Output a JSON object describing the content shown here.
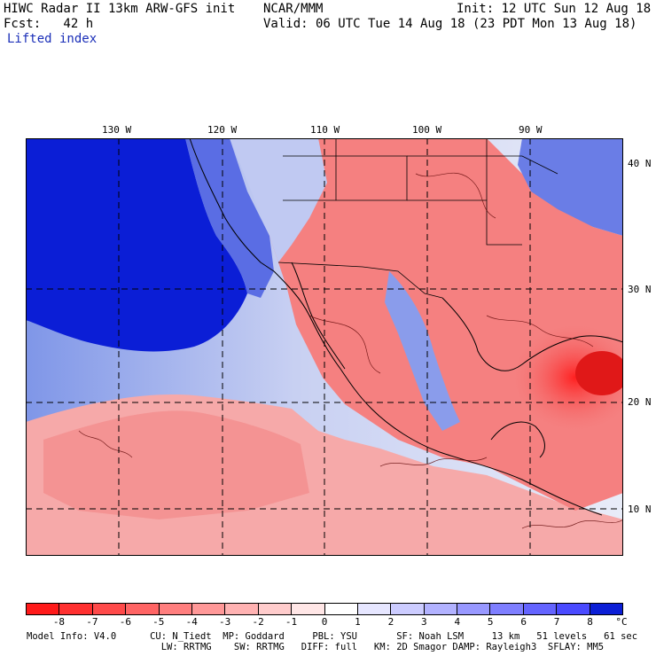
{
  "header": {
    "title_left": "HIWC Radar II 13km ARW-GFS init",
    "org": "NCAR/MMM",
    "init": "Init: 12 UTC Sun 12 Aug 18",
    "fcst": "Fcst:   42 h",
    "valid": "Valid: 06 UTC Tue 14 Aug 18 (23 PDT Mon 13 Aug 18)",
    "field": "Lifted index"
  },
  "map": {
    "lon_labels": [
      "130 W",
      "120 W",
      "110 W",
      "100 W",
      "90 W"
    ],
    "lat_labels": [
      "40 N",
      "30 N",
      "20 N",
      "10 N"
    ],
    "field_units": "°C",
    "colors": {
      "ocean_stable": "#0b1ed6",
      "land_unstable": "#f25a5a",
      "neutral": "#f7f7fb"
    }
  },
  "colorbar": {
    "ticks": [
      "-8",
      "-7",
      "-6",
      "-5",
      "-4",
      "-3",
      "-2",
      "-1",
      "0",
      "1",
      "2",
      "3",
      "4",
      "5",
      "6",
      "7",
      "8"
    ],
    "unit": "°C",
    "colors": [
      "#ff1a1a",
      "#ff3030",
      "#ff4a4a",
      "#ff6464",
      "#ff7e7e",
      "#ff9898",
      "#ffb2b2",
      "#ffcccc",
      "#ffe6e6",
      "#ffffff",
      "#e6e6ff",
      "#ccccff",
      "#b2b2ff",
      "#9898ff",
      "#7e7eff",
      "#6464ff",
      "#4a4aff",
      "#0b1ed6"
    ]
  },
  "footer": {
    "line1": "Model Info: V4.0      CU: N_Tiedt  MP: Goddard     PBL: YSU       SF: Noah LSM     13 km   51 levels   61 sec",
    "line2": "                        LW: RRTMG    SW: RRTMG   DIFF: full   KM: 2D Smagor DAMP: Rayleigh3  SFLAY: MM5"
  }
}
